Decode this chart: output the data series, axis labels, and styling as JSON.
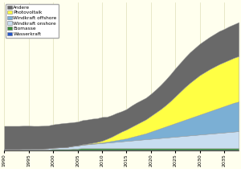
{
  "years": [
    1990,
    1991,
    1992,
    1993,
    1994,
    1995,
    1996,
    1997,
    1998,
    1999,
    2000,
    2001,
    2002,
    2003,
    2004,
    2005,
    2006,
    2007,
    2008,
    2009,
    2010,
    2011,
    2012,
    2013,
    2014,
    2015,
    2016,
    2017,
    2018,
    2019,
    2020,
    2021,
    2022,
    2023,
    2024,
    2025,
    2026,
    2027,
    2028,
    2029,
    2030,
    2031,
    2032,
    2033,
    2034,
    2035,
    2036,
    2037,
    2038
  ],
  "wasserkraft": [
    2,
    2,
    2,
    2,
    2,
    2,
    2,
    2,
    2,
    2,
    2,
    2,
    2,
    2,
    2,
    2,
    2,
    2,
    2,
    2,
    2,
    2,
    2,
    2,
    2,
    2,
    2,
    2,
    2,
    2,
    2,
    2,
    2,
    2,
    2,
    2,
    2,
    2,
    2,
    2,
    2,
    2,
    2,
    2,
    2,
    2,
    2,
    2,
    2
  ],
  "biomasse": [
    1,
    1,
    1,
    1,
    1,
    1,
    1,
    1,
    1,
    1,
    2,
    2,
    2,
    2,
    3,
    3,
    4,
    4,
    4,
    4,
    4,
    4,
    4,
    4,
    4,
    4,
    4,
    4,
    4,
    4,
    4,
    4,
    4,
    4,
    4,
    4,
    4,
    4,
    4,
    4,
    4,
    4,
    4,
    4,
    4,
    4,
    4,
    4,
    4
  ],
  "windkraft_onshore": [
    0.5,
    0.5,
    0.5,
    0.5,
    1,
    1,
    1.5,
    1.5,
    2,
    2.5,
    3,
    3.5,
    4,
    5,
    6,
    7,
    8,
    9,
    10,
    11,
    12,
    13,
    14,
    15,
    16,
    17,
    18,
    19,
    20,
    21,
    22,
    23,
    24,
    25,
    26,
    27,
    28,
    29,
    30,
    31,
    32,
    33,
    34,
    35,
    36,
    37,
    38,
    39,
    40
  ],
  "windkraft_offshore": [
    0,
    0,
    0,
    0,
    0,
    0,
    0,
    0,
    0,
    0,
    0,
    0,
    0,
    0,
    0,
    0.2,
    0.5,
    0.5,
    1,
    1,
    1.5,
    2,
    3,
    4,
    5,
    6,
    8,
    10,
    12,
    14,
    17,
    20,
    23,
    26,
    29,
    32,
    35,
    38,
    41,
    44,
    47,
    50,
    53,
    56,
    59,
    62,
    65,
    68,
    70
  ],
  "photovoltaik": [
    0,
    0,
    0,
    0,
    0,
    0,
    0,
    0,
    0,
    0,
    0,
    0,
    0,
    0,
    0.2,
    0.3,
    0.5,
    1,
    1.5,
    2.5,
    4,
    7,
    10,
    14,
    18,
    21,
    24,
    27,
    30,
    33,
    37,
    41,
    45,
    50,
    56,
    63,
    70,
    77,
    83,
    88,
    93,
    96,
    99,
    101,
    103,
    104,
    105,
    106,
    107
  ],
  "andere": [
    55,
    55,
    55,
    55,
    55,
    55,
    54,
    54,
    54,
    54,
    55,
    56,
    57,
    57,
    56,
    56,
    57,
    57,
    57,
    56,
    56,
    52,
    51,
    50,
    48,
    48,
    50,
    51,
    51,
    51,
    52,
    54,
    57,
    60,
    63,
    66,
    68,
    70,
    72,
    73,
    74,
    75,
    76,
    77,
    78,
    78,
    79,
    79,
    80
  ],
  "colors": {
    "andere": "#696969",
    "photovoltaik": "#ffff44",
    "windkraft_offshore": "#7bafd4",
    "windkraft_onshore": "#c8ddf0",
    "biomasse": "#3a8c3a",
    "wasserkraft": "#2255cc"
  },
  "legend_labels": [
    "Andere",
    "Photovoltaik",
    "Windkraft offshore",
    "Windkraft onshore",
    "Biomasse",
    "Wasserkraft"
  ],
  "background_color": "#ffffee",
  "grid_color": "#cccc99",
  "xlim": [
    1990,
    2038
  ],
  "ylim_max": 350
}
